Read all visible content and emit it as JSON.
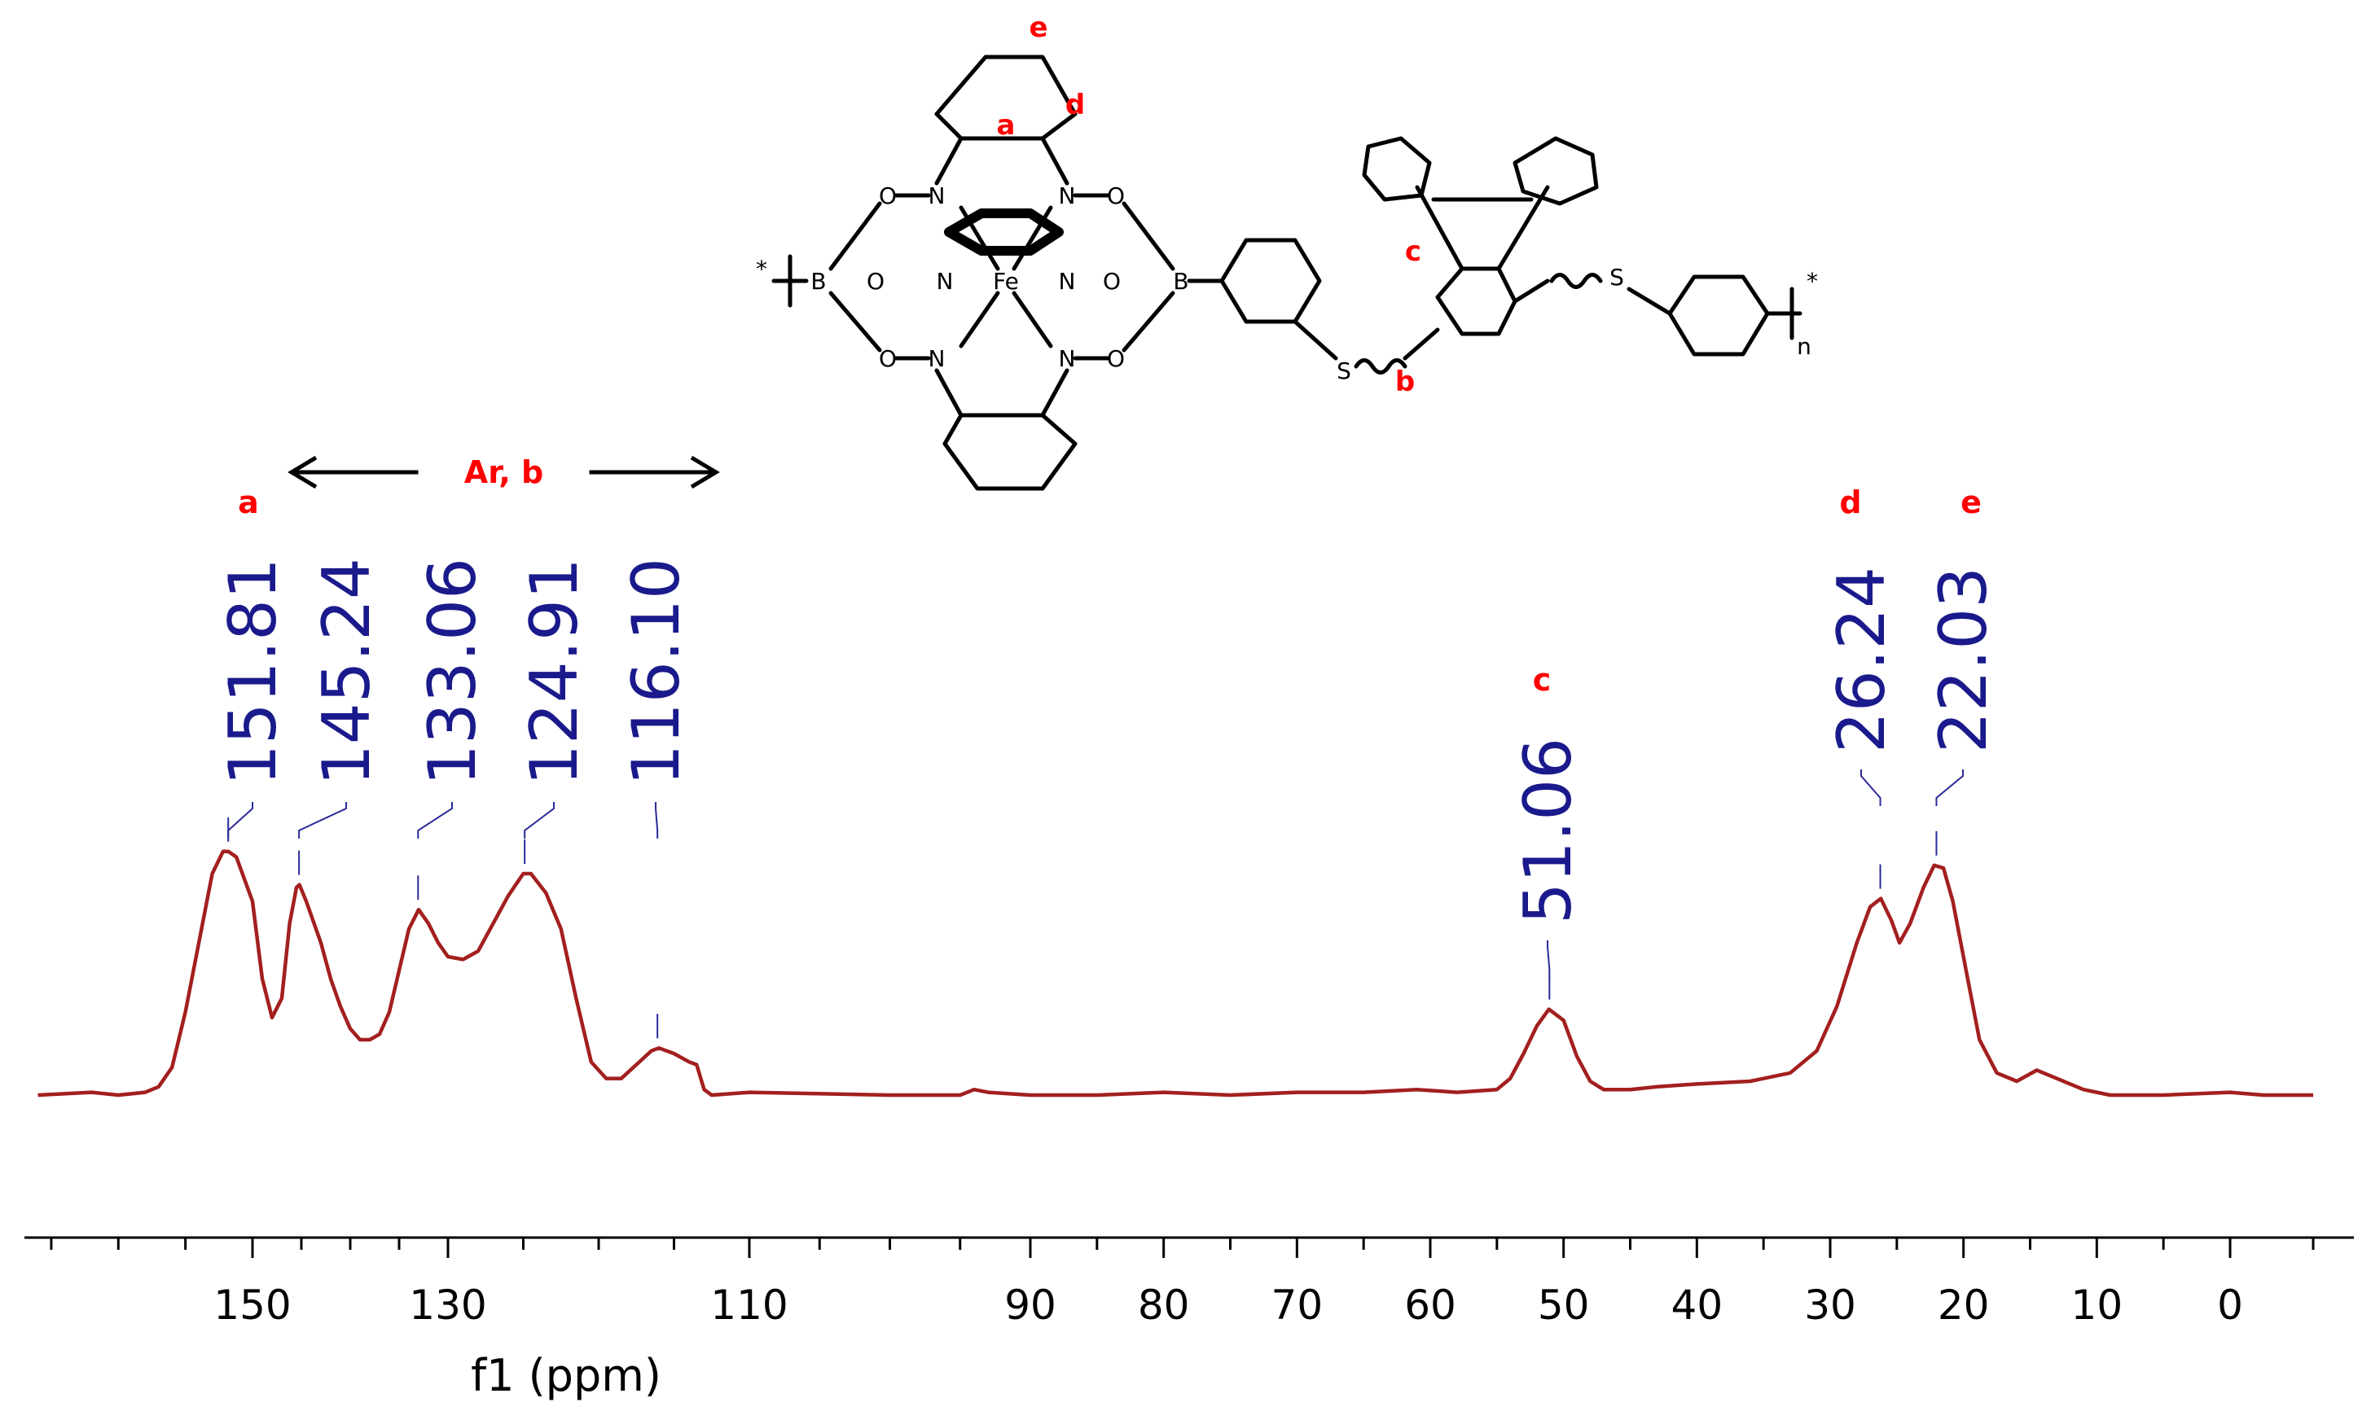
{
  "chart_data": {
    "type": "line",
    "title": "",
    "xlabel": "f1 (ppm)",
    "ylabel": "",
    "x_reversed": true,
    "xlim": [
      167,
      -5
    ],
    "x_ticks": [
      150,
      130,
      110,
      90,
      80,
      70,
      60,
      50,
      40,
      30,
      20,
      10,
      0
    ],
    "series": [
      {
        "color": "#a31f1f",
        "points": [
          [
            166,
            0.0
          ],
          [
            162,
            0.01
          ],
          [
            160,
            0.0
          ],
          [
            158,
            0.01
          ],
          [
            157,
            0.03
          ],
          [
            156,
            0.1
          ],
          [
            155,
            0.3
          ],
          [
            154,
            0.55
          ],
          [
            153,
            0.8
          ],
          [
            152.2,
            0.88
          ],
          [
            151.8,
            0.88
          ],
          [
            151.2,
            0.86
          ],
          [
            150,
            0.7
          ],
          [
            149,
            0.42
          ],
          [
            148,
            0.28
          ],
          [
            147,
            0.35
          ],
          [
            146.2,
            0.62
          ],
          [
            145.5,
            0.75
          ],
          [
            145.2,
            0.76
          ],
          [
            144.5,
            0.7
          ],
          [
            143,
            0.55
          ],
          [
            142,
            0.42
          ],
          [
            141,
            0.32
          ],
          [
            140,
            0.24
          ],
          [
            139,
            0.2
          ],
          [
            138,
            0.2
          ],
          [
            137,
            0.22
          ],
          [
            136,
            0.3
          ],
          [
            135,
            0.45
          ],
          [
            134,
            0.6
          ],
          [
            133,
            0.67
          ],
          [
            132,
            0.62
          ],
          [
            131,
            0.55
          ],
          [
            130,
            0.5
          ],
          [
            129,
            0.49
          ],
          [
            128,
            0.52
          ],
          [
            127,
            0.62
          ],
          [
            126,
            0.72
          ],
          [
            125,
            0.8
          ],
          [
            124.5,
            0.8
          ],
          [
            123.5,
            0.73
          ],
          [
            122.5,
            0.6
          ],
          [
            121.5,
            0.35
          ],
          [
            120.5,
            0.12
          ],
          [
            119.5,
            0.06
          ],
          [
            118.5,
            0.06
          ],
          [
            117.5,
            0.11
          ],
          [
            116.5,
            0.16
          ],
          [
            116,
            0.17
          ],
          [
            115,
            0.15
          ],
          [
            114,
            0.12
          ],
          [
            113.5,
            0.11
          ],
          [
            113,
            0.02
          ],
          [
            112.5,
            0.0
          ],
          [
            110,
            0.01
          ],
          [
            100,
            0.0
          ],
          [
            95,
            0.0
          ],
          [
            94,
            0.02
          ],
          [
            93,
            0.01
          ],
          [
            90,
            0.0
          ],
          [
            85,
            0.0
          ],
          [
            80,
            0.01
          ],
          [
            75,
            0.0
          ],
          [
            70,
            0.01
          ],
          [
            65,
            0.01
          ],
          [
            61,
            0.02
          ],
          [
            58,
            0.01
          ],
          [
            55,
            0.02
          ],
          [
            54,
            0.06
          ],
          [
            53,
            0.15
          ],
          [
            52,
            0.25
          ],
          [
            51.1,
            0.31
          ],
          [
            50,
            0.27
          ],
          [
            49,
            0.14
          ],
          [
            48,
            0.05
          ],
          [
            47,
            0.02
          ],
          [
            45,
            0.02
          ],
          [
            43,
            0.03
          ],
          [
            40,
            0.04
          ],
          [
            36,
            0.05
          ],
          [
            33,
            0.08
          ],
          [
            31,
            0.16
          ],
          [
            29.5,
            0.32
          ],
          [
            28,
            0.55
          ],
          [
            27,
            0.68
          ],
          [
            26.2,
            0.71
          ],
          [
            25.4,
            0.63
          ],
          [
            24.8,
            0.55
          ],
          [
            24,
            0.62
          ],
          [
            23,
            0.75
          ],
          [
            22.2,
            0.83
          ],
          [
            21.5,
            0.82
          ],
          [
            20.8,
            0.7
          ],
          [
            19.8,
            0.45
          ],
          [
            18.8,
            0.2
          ],
          [
            17.5,
            0.08
          ],
          [
            16,
            0.05
          ],
          [
            14.5,
            0.09
          ],
          [
            13,
            0.06
          ],
          [
            11,
            0.02
          ],
          [
            9,
            0.0
          ],
          [
            5,
            0.0
          ],
          [
            0,
            0.01
          ],
          [
            -2,
            0.0
          ],
          [
            -5,
            0.0
          ]
        ]
      }
    ],
    "peak_labels": [
      {
        "ppm": 151.81,
        "text": "151.81"
      },
      {
        "ppm": 145.24,
        "text": "145.24"
      },
      {
        "ppm": 133.06,
        "text": "133.06"
      },
      {
        "ppm": 124.91,
        "text": "124.91"
      },
      {
        "ppm": 116.1,
        "text": "116.10"
      },
      {
        "ppm": 51.06,
        "text": "51.06"
      },
      {
        "ppm": 26.24,
        "text": "26.24"
      },
      {
        "ppm": 22.03,
        "text": "22.03"
      }
    ],
    "assignments": [
      {
        "ppm": 151.81,
        "text": "a"
      },
      {
        "ppm": 51.06,
        "text": "c"
      },
      {
        "ppm": 26.24,
        "text": "d"
      },
      {
        "ppm": 22.03,
        "text": "e"
      }
    ],
    "annotation": {
      "text": "Ar, b",
      "from_ppm": 146,
      "to_ppm": 116
    }
  },
  "structure": {
    "labels": {
      "a": "a",
      "b": "b",
      "c": "c",
      "d": "d",
      "e": "e"
    },
    "atoms": {
      "boron": "B",
      "oxygen": "O",
      "nitrogen": "N",
      "iron": "Fe",
      "sulfur": "S",
      "star": "*",
      "repeat": "n"
    }
  }
}
